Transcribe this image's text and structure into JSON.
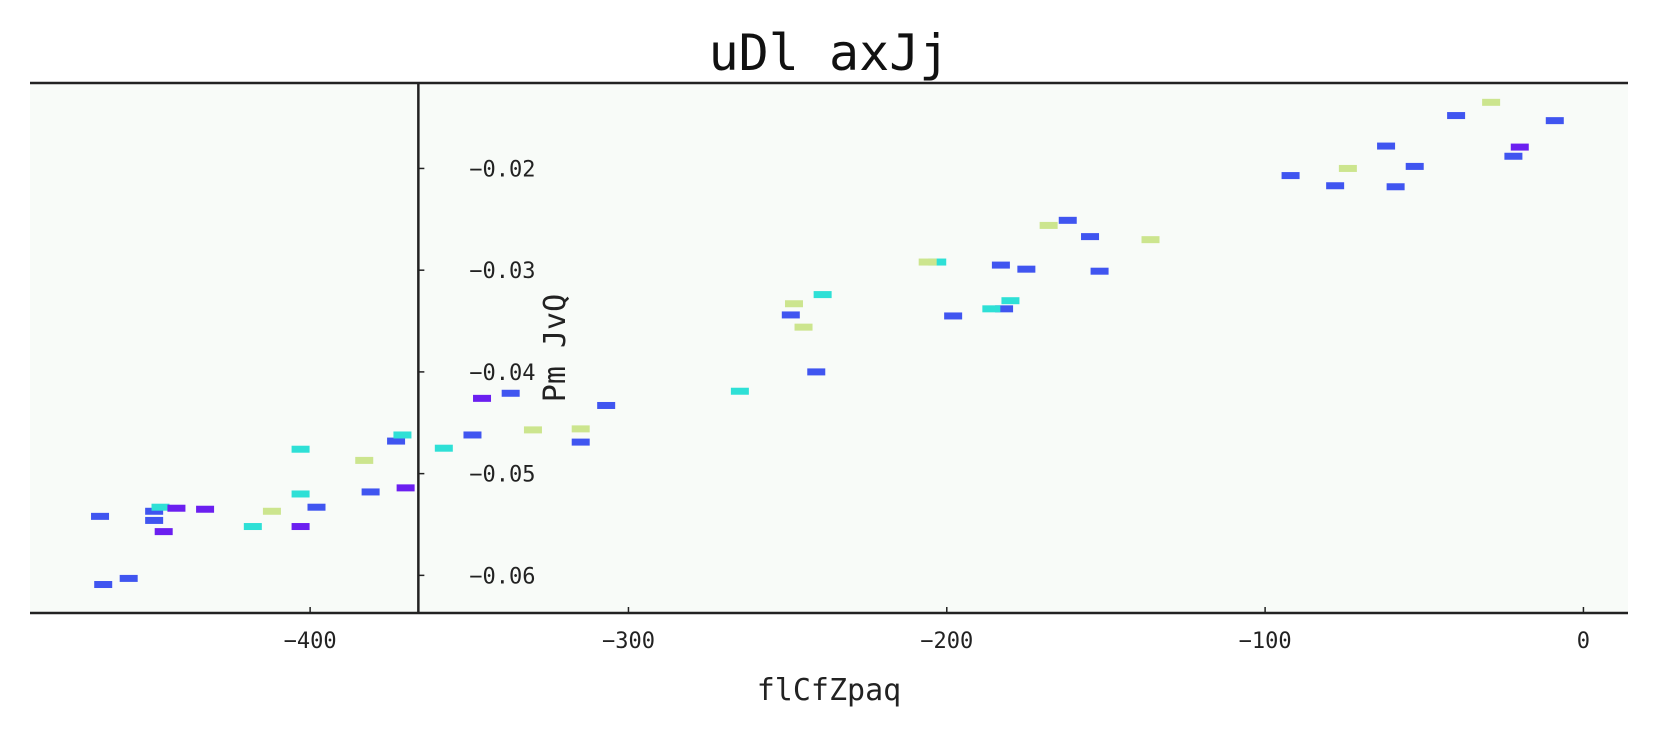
{
  "chart_data": {
    "type": "scatter",
    "title": "uDl axJj",
    "xlabel": "flCfZpaq",
    "ylabel": "Pm JvQ",
    "xlim": [
      -488,
      14
    ],
    "ylim": [
      -0.0637,
      -0.0116
    ],
    "x_ticks": [
      -400,
      -300,
      -200,
      -100,
      0
    ],
    "y_ticks": [
      -0.06,
      -0.05,
      -0.04,
      -0.03,
      -0.02
    ],
    "x_tick_labels": [
      "−400",
      "−300",
      "−200",
      "−100",
      "0"
    ],
    "y_tick_labels": [
      "−0.06",
      "−0.05",
      "−0.04",
      "−0.03",
      "−0.02"
    ],
    "y_axis_position_x": -366,
    "grid": false,
    "marker": "dash",
    "colors": {
      "blue": "#4055f0",
      "cyan": "#2ee0d6",
      "lime": "#cce58e",
      "violet": "#6b1ff0",
      "background": "#f8fbf8",
      "axis": "#222222"
    },
    "series": [
      {
        "color_key": "blue",
        "points": [
          [
            -466,
            -0.0542
          ],
          [
            -465,
            -0.0609
          ],
          [
            -457,
            -0.0603
          ],
          [
            -449,
            -0.0537
          ],
          [
            -449,
            -0.0546
          ],
          [
            -398,
            -0.0533
          ],
          [
            -381,
            -0.0518
          ],
          [
            -373,
            -0.0468
          ],
          [
            -349,
            -0.0462
          ],
          [
            -337,
            -0.0421
          ],
          [
            -315,
            -0.0469
          ],
          [
            -307,
            -0.0433
          ],
          [
            -249,
            -0.0344
          ],
          [
            -241,
            -0.04
          ],
          [
            -198,
            -0.0345
          ],
          [
            -182,
            -0.0338
          ],
          [
            -183,
            -0.0295
          ],
          [
            -175,
            -0.0299
          ],
          [
            -162,
            -0.0251
          ],
          [
            -155,
            -0.0267
          ],
          [
            -152,
            -0.0301
          ],
          [
            -92,
            -0.0207
          ],
          [
            -78,
            -0.0217
          ],
          [
            -62,
            -0.0178
          ],
          [
            -59,
            -0.0218
          ],
          [
            -53,
            -0.0198
          ],
          [
            -40,
            -0.0148
          ],
          [
            -22,
            -0.0188
          ],
          [
            -9,
            -0.0153
          ]
        ]
      },
      {
        "color_key": "cyan",
        "points": [
          [
            -447,
            -0.0533
          ],
          [
            -418,
            -0.0552
          ],
          [
            -403,
            -0.052
          ],
          [
            -403,
            -0.0476
          ],
          [
            -371,
            -0.0462
          ],
          [
            -358,
            -0.0475
          ],
          [
            -265,
            -0.0419
          ],
          [
            -239,
            -0.0324
          ],
          [
            -203,
            -0.0292
          ],
          [
            -186,
            -0.0338
          ],
          [
            -180,
            -0.033
          ]
        ]
      },
      {
        "color_key": "lime",
        "points": [
          [
            -412,
            -0.0537
          ],
          [
            -383,
            -0.0487
          ],
          [
            -330,
            -0.0457
          ],
          [
            -315,
            -0.0456
          ],
          [
            -248,
            -0.0333
          ],
          [
            -245,
            -0.0356
          ],
          [
            -206,
            -0.0292
          ],
          [
            -168,
            -0.0256
          ],
          [
            -136,
            -0.027
          ],
          [
            -74,
            -0.02
          ],
          [
            -29,
            -0.0135
          ]
        ]
      },
      {
        "color_key": "violet",
        "points": [
          [
            -446,
            -0.0557
          ],
          [
            -442,
            -0.0534
          ],
          [
            -433,
            -0.0535
          ],
          [
            -403,
            -0.0552
          ],
          [
            -370,
            -0.0514
          ],
          [
            -346,
            -0.0426
          ],
          [
            -20,
            -0.0179
          ]
        ]
      }
    ]
  }
}
